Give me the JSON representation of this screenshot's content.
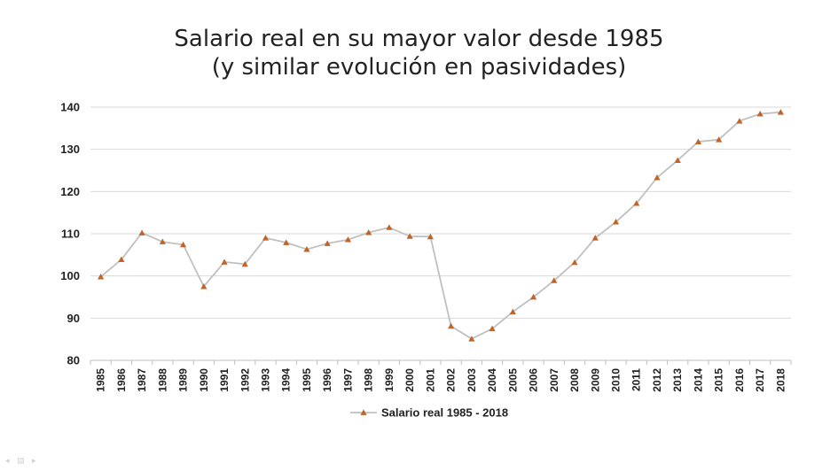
{
  "title_line1": "Salario real en su mayor valor desde 1985",
  "title_line2": "(y similar evolución en pasividades)",
  "chart_data": {
    "type": "line",
    "title": "Salario real en su mayor valor desde 1985 (y similar evolución en pasividades)",
    "xlabel": "",
    "ylabel": "",
    "ylim": [
      80,
      140
    ],
    "yticks": [
      80,
      90,
      100,
      110,
      120,
      130,
      140
    ],
    "grid": "horizontal",
    "legend_position": "bottom",
    "line_color": "#c0c0c0",
    "marker_color": "#c0652a",
    "marker": "triangle",
    "x": [
      "1985",
      "1986",
      "1987",
      "1988",
      "1989",
      "1990",
      "1991",
      "1992",
      "1993",
      "1994",
      "1995",
      "1996",
      "1997",
      "1998",
      "1999",
      "2000",
      "2001",
      "2002",
      "2003",
      "2004",
      "2005",
      "2006",
      "2007",
      "2008",
      "2009",
      "2010",
      "2011",
      "2012",
      "2013",
      "2014",
      "2015",
      "2016",
      "2017",
      "2018"
    ],
    "series": [
      {
        "name": "Salario real 1985 - 2018",
        "values": [
          99.8,
          103.9,
          110.2,
          108.1,
          107.4,
          97.5,
          103.3,
          102.8,
          109.0,
          107.9,
          106.3,
          107.7,
          108.6,
          110.3,
          111.5,
          109.4,
          109.3,
          88.1,
          85.1,
          87.5,
          91.5,
          95.0,
          98.9,
          103.2,
          109.0,
          112.8,
          117.2,
          123.3,
          127.4,
          131.8,
          132.3,
          136.7,
          138.4,
          138.8
        ]
      }
    ]
  }
}
